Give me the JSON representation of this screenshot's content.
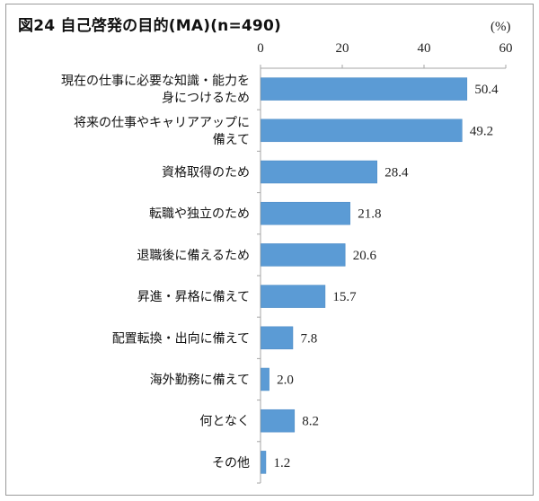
{
  "unit": "(%)",
  "colors": {
    "bar": "#5B9BD5",
    "bar_edge": "#4a89c4",
    "axis": "#a6a6a6"
  },
  "chart_data": {
    "type": "bar",
    "orientation": "horizontal",
    "title": "図24 自己啓発の目的(MA)(n=490)",
    "xlim": [
      0,
      60
    ],
    "xticks": [
      "0",
      "20",
      "40",
      "60"
    ],
    "x_axis_position": "top",
    "grid": false,
    "categories": [
      [
        "現在の仕事に必要な知識・能力を",
        "身につけるため"
      ],
      [
        "将来の仕事やキャリアアップに",
        "備えて"
      ],
      [
        "資格取得のため"
      ],
      [
        "転職や独立のため"
      ],
      [
        "退職後に備えるため"
      ],
      [
        "昇進・昇格に備えて"
      ],
      [
        "配置転換・出向に備えて"
      ],
      [
        "海外勤務に備えて"
      ],
      [
        "何となく"
      ],
      [
        "その他"
      ]
    ],
    "values": [
      50.4,
      49.2,
      28.4,
      21.8,
      20.6,
      15.7,
      7.8,
      2.0,
      8.2,
      1.2
    ],
    "value_labels": [
      "50.4",
      "49.2",
      "28.4",
      "21.8",
      "20.6",
      "15.7",
      "7.8",
      "2.0",
      "8.2",
      "1.2"
    ]
  }
}
